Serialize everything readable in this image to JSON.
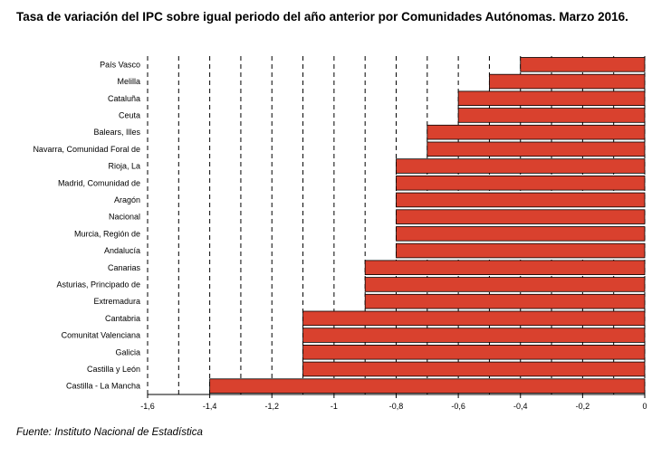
{
  "chart_data": {
    "type": "bar",
    "orientation": "horizontal",
    "title": "Tasa de variación del IPC sobre igual periodo del año anterior por Comunidades Autónomas. Marzo 2016.",
    "categories": [
      "País Vasco",
      "Melilla",
      "Cataluña",
      "Ceuta",
      "Balears, Illes",
      "Navarra, Comunidad Foral de",
      "Rioja, La",
      "Madrid, Comunidad de",
      "Aragón",
      "Nacional",
      "Murcia, Región de",
      "Andalucía",
      "Canarias",
      "Asturias, Principado de",
      "Extremadura",
      "Cantabria",
      "Comunitat Valenciana",
      "Galicia",
      "Castilla y León",
      "Castilla - La Mancha"
    ],
    "values": [
      -0.4,
      -0.5,
      -0.6,
      -0.6,
      -0.7,
      -0.7,
      -0.8,
      -0.8,
      -0.8,
      -0.8,
      -0.8,
      -0.8,
      -0.9,
      -0.9,
      -0.9,
      -1.1,
      -1.1,
      -1.1,
      -1.1,
      -1.4
    ],
    "xlim": [
      -1.6,
      0
    ],
    "xticks": [
      -1.6,
      -1.4,
      -1.2,
      -1,
      -0.8,
      -0.6,
      -0.4,
      -0.2,
      0
    ],
    "xtick_labels": [
      "-1,6",
      "-1,4",
      "-1,2",
      "-1",
      "-0,8",
      "-0,6",
      "-0,4",
      "-0,2",
      "0"
    ],
    "grid_step": 0.1,
    "grid": "vertical dashed",
    "bar_color": "#d9412e",
    "xlabel": "",
    "ylabel": ""
  },
  "source": "Fuente: Instituto Nacional de Estadística"
}
